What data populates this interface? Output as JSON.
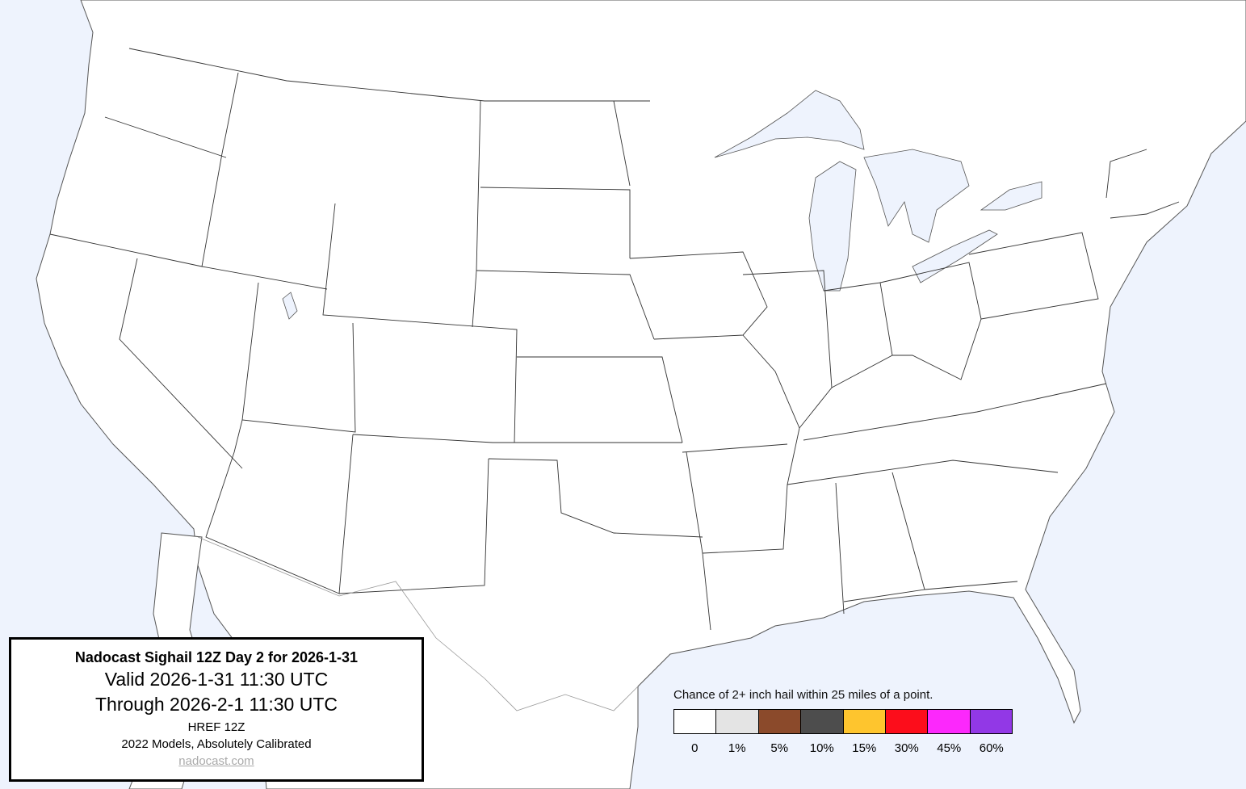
{
  "title_box": {
    "title": "Nadocast Sighail 12Z Day 2 for 2026-1-31",
    "valid": "Valid 2026-1-31 11:30 UTC",
    "through": "Through 2026-2-1 11:30 UTC",
    "model": "HREF 12Z",
    "calibration": "2022 Models, Absolutely Calibrated",
    "link": "nadocast.com"
  },
  "legend": {
    "caption": "Chance of 2+ inch hail within 25 miles of a point.",
    "bins": [
      {
        "label": "0",
        "color": "#ffffff"
      },
      {
        "label": "1%",
        "color": "#e4e4e4"
      },
      {
        "label": "5%",
        "color": "#8b4a2b"
      },
      {
        "label": "10%",
        "color": "#4d4d4d"
      },
      {
        "label": "15%",
        "color": "#fec52e"
      },
      {
        "label": "30%",
        "color": "#fc0d1b"
      },
      {
        "label": "45%",
        "color": "#fc28fc"
      },
      {
        "label": "60%",
        "color": "#9238e6"
      }
    ]
  },
  "map": {
    "water_color": "#eef3fd",
    "land_color": "#ffffff"
  }
}
